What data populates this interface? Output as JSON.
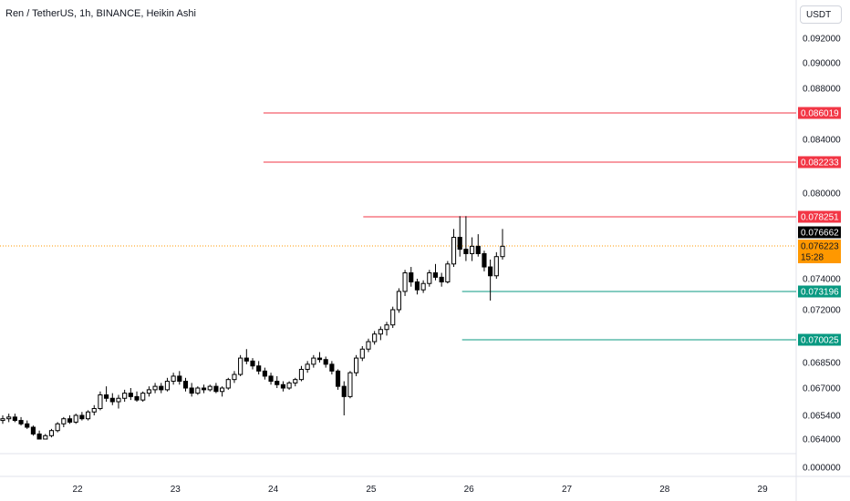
{
  "header": {
    "title": "Ren / TetherUS, 1h, BINANCE, Heikin Ashi",
    "currency": "USDT"
  },
  "chart_data": {
    "type": "candlestick",
    "price_axis": {
      "ticks": [
        {
          "value": 0.092,
          "label": "0.092000"
        },
        {
          "value": 0.09,
          "label": "0.090000"
        },
        {
          "value": 0.088,
          "label": "0.088000"
        },
        {
          "value": 0.084,
          "label": "0.084000"
        },
        {
          "value": 0.08,
          "label": "0.080000"
        },
        {
          "value": 0.074,
          "label": "0.074000"
        },
        {
          "value": 0.072,
          "label": "0.072000"
        },
        {
          "value": 0.0685,
          "label": "0.068500"
        },
        {
          "value": 0.067,
          "label": "0.067000"
        },
        {
          "value": 0.0654,
          "label": "0.065400"
        },
        {
          "value": 0.064,
          "label": "0.064000"
        },
        {
          "value": 0.0,
          "label": "0.000000"
        }
      ]
    },
    "time_axis": {
      "ticks": [
        "22",
        "23",
        "24",
        "25",
        "26",
        "27",
        "28",
        "29"
      ]
    },
    "levels": [
      {
        "value": 0.086019,
        "label": "0.086019",
        "color": "#f23645",
        "start_day": 23.9
      },
      {
        "value": 0.082233,
        "label": "0.082233",
        "color": "#f23645",
        "start_day": 23.9
      },
      {
        "value": 0.078251,
        "label": "0.078251",
        "color": "#f23645",
        "start_day": 24.92
      },
      {
        "value": 0.073196,
        "label": "0.073196",
        "color": "#089981",
        "start_day": 25.93
      },
      {
        "value": 0.070025,
        "label": "0.070025",
        "color": "#089981",
        "start_day": 25.93
      }
    ],
    "last_price": {
      "value": 0.076662,
      "label": "0.076662",
      "color": "#000000"
    },
    "current_price": {
      "value": 0.076223,
      "label": "0.076223",
      "countdown": "15:28",
      "color": "#ff9800"
    },
    "candle_colors": {
      "up": "#ffffff",
      "down": "#000000",
      "wick": "#000000"
    },
    "candles": [
      [
        0.0651,
        0.0654,
        0.0649,
        0.0652
      ],
      [
        0.0652,
        0.0655,
        0.065,
        0.0653
      ],
      [
        0.0653,
        0.0655,
        0.065,
        0.0651
      ],
      [
        0.0651,
        0.0653,
        0.0648,
        0.0649
      ],
      [
        0.0649,
        0.0651,
        0.0646,
        0.0647
      ],
      [
        0.0647,
        0.0648,
        0.0642,
        0.0643
      ],
      [
        0.0643,
        0.0645,
        0.0639,
        0.064
      ],
      [
        0.064,
        0.0643,
        0.0638,
        0.0642
      ],
      [
        0.0642,
        0.0646,
        0.0641,
        0.0645
      ],
      [
        0.0645,
        0.065,
        0.0644,
        0.0649
      ],
      [
        0.0649,
        0.0653,
        0.0647,
        0.0652
      ],
      [
        0.0652,
        0.0654,
        0.0649,
        0.065
      ],
      [
        0.065,
        0.0655,
        0.0649,
        0.0654
      ],
      [
        0.0654,
        0.0656,
        0.0651,
        0.0652
      ],
      [
        0.0652,
        0.0657,
        0.0651,
        0.0656
      ],
      [
        0.0656,
        0.066,
        0.0654,
        0.0658
      ],
      [
        0.0658,
        0.0668,
        0.0657,
        0.0666
      ],
      [
        0.0666,
        0.0671,
        0.0662,
        0.0664
      ],
      [
        0.0664,
        0.0667,
        0.066,
        0.0662
      ],
      [
        0.0662,
        0.0666,
        0.0658,
        0.0664
      ],
      [
        0.0664,
        0.0669,
        0.0662,
        0.0667
      ],
      [
        0.0667,
        0.067,
        0.0663,
        0.0665
      ],
      [
        0.0665,
        0.0668,
        0.0662,
        0.0663
      ],
      [
        0.0663,
        0.0668,
        0.0662,
        0.0667
      ],
      [
        0.0667,
        0.0671,
        0.0665,
        0.0669
      ],
      [
        0.0669,
        0.0673,
        0.0667,
        0.0671
      ],
      [
        0.0671,
        0.0673,
        0.0667,
        0.0669
      ],
      [
        0.0669,
        0.0676,
        0.0668,
        0.0674
      ],
      [
        0.0674,
        0.0679,
        0.0672,
        0.0677
      ],
      [
        0.0677,
        0.068,
        0.0672,
        0.0674
      ],
      [
        0.0674,
        0.0676,
        0.0668,
        0.067
      ],
      [
        0.067,
        0.0673,
        0.0665,
        0.0667
      ],
      [
        0.0667,
        0.0671,
        0.0666,
        0.067
      ],
      [
        0.067,
        0.0672,
        0.0667,
        0.0669
      ],
      [
        0.0669,
        0.0672,
        0.0668,
        0.0671
      ],
      [
        0.0671,
        0.0673,
        0.0667,
        0.0668
      ],
      [
        0.0668,
        0.0671,
        0.0665,
        0.067
      ],
      [
        0.067,
        0.0676,
        0.0669,
        0.0675
      ],
      [
        0.0675,
        0.068,
        0.0673,
        0.0678
      ],
      [
        0.0678,
        0.069,
        0.0677,
        0.0688
      ],
      [
        0.0688,
        0.0694,
        0.0684,
        0.0686
      ],
      [
        0.0686,
        0.0688,
        0.0681,
        0.0683
      ],
      [
        0.0683,
        0.0686,
        0.0678,
        0.068
      ],
      [
        0.068,
        0.0682,
        0.0675,
        0.0677
      ],
      [
        0.0677,
        0.0679,
        0.0672,
        0.0674
      ],
      [
        0.0674,
        0.0677,
        0.067,
        0.0672
      ],
      [
        0.0672,
        0.0674,
        0.0668,
        0.067
      ],
      [
        0.067,
        0.0674,
        0.0669,
        0.0673
      ],
      [
        0.0673,
        0.0676,
        0.0671,
        0.0675
      ],
      [
        0.0675,
        0.0683,
        0.0674,
        0.0681
      ],
      [
        0.0681,
        0.0686,
        0.0679,
        0.0684
      ],
      [
        0.0684,
        0.069,
        0.0682,
        0.0688
      ],
      [
        0.0688,
        0.0692,
        0.0685,
        0.0687
      ],
      [
        0.0687,
        0.0689,
        0.0682,
        0.0684
      ],
      [
        0.0684,
        0.0686,
        0.0678,
        0.068
      ],
      [
        0.068,
        0.0681,
        0.0669,
        0.0671
      ],
      [
        0.0671,
        0.0674,
        0.0654,
        0.0665
      ],
      [
        0.0665,
        0.068,
        0.0664,
        0.0679
      ],
      [
        0.0679,
        0.069,
        0.0677,
        0.0688
      ],
      [
        0.0688,
        0.0696,
        0.0686,
        0.0694
      ],
      [
        0.0694,
        0.0701,
        0.0692,
        0.0699
      ],
      [
        0.0699,
        0.0706,
        0.0697,
        0.0704
      ],
      [
        0.0704,
        0.0709,
        0.07,
        0.0707
      ],
      [
        0.0707,
        0.0712,
        0.0703,
        0.071
      ],
      [
        0.071,
        0.0722,
        0.0708,
        0.072
      ],
      [
        0.072,
        0.0734,
        0.0718,
        0.0732
      ],
      [
        0.0732,
        0.0746,
        0.0729,
        0.0744
      ],
      [
        0.0744,
        0.0748,
        0.0735,
        0.0738
      ],
      [
        0.0738,
        0.074,
        0.073,
        0.0733
      ],
      [
        0.0733,
        0.0739,
        0.0731,
        0.0737
      ],
      [
        0.0737,
        0.0746,
        0.0735,
        0.0744
      ],
      [
        0.0744,
        0.075,
        0.0739,
        0.0741
      ],
      [
        0.0741,
        0.0744,
        0.0735,
        0.0738
      ],
      [
        0.0738,
        0.0752,
        0.0737,
        0.075
      ],
      [
        0.075,
        0.077,
        0.0748,
        0.0765
      ],
      [
        0.0765,
        0.0783,
        0.0755,
        0.076
      ],
      [
        0.076,
        0.0783,
        0.0752,
        0.0757
      ],
      [
        0.0757,
        0.0765,
        0.0752,
        0.0762
      ],
      [
        0.0762,
        0.0766,
        0.0755,
        0.0757
      ],
      [
        0.0757,
        0.0759,
        0.0745,
        0.0748
      ],
      [
        0.0748,
        0.0753,
        0.0726,
        0.0742
      ],
      [
        0.0742,
        0.0758,
        0.074,
        0.0755
      ],
      [
        0.0755,
        0.077,
        0.0753,
        0.0762
      ]
    ]
  }
}
